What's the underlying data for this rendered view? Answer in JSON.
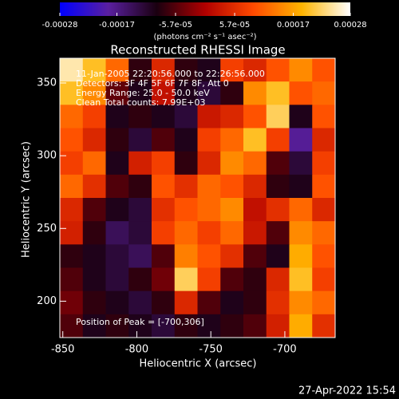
{
  "chart_data": {
    "type": "image",
    "title": "Reconstructed RHESSI Image",
    "x_label": "Heliocentric X (arcsec)",
    "y_label": "Heliocentric Y (arcsec)",
    "xlim": [
      -852,
      -666
    ],
    "ylim": [
      175,
      367
    ],
    "xticks": [
      -850,
      -800,
      -750,
      -700
    ],
    "yticks": [
      200,
      250,
      300,
      350
    ],
    "colorbar": {
      "label": "(photons cm⁻² s⁻¹ asec⁻²)",
      "lim": [
        -0.00028,
        0.00028
      ],
      "ticks": [
        -0.00028,
        -0.00017,
        {
          "value": -5.7e-05,
          "label": "-5.7e-05"
        },
        {
          "value": 5.7e-05,
          "label": "5.7e-05"
        },
        0.00017,
        0.00028
      ],
      "colormap": [
        "#0000ff",
        "#5a1fa0",
        "#1a0010",
        "#b00000",
        "#ff4a00",
        "#ffb400",
        "#ffffff"
      ]
    },
    "annotations": [
      "11-Jan-2005 22:20:56.000 to 22:26:56.000",
      "Detectors: 3F 4F 5F 6F 7F 8F, Att 0",
      "Energy Range: 25.0 - 50.0 keV",
      "Clean   Total counts: 7.99E+03"
    ],
    "peak_label": "Position of Peak = [-700,306]",
    "footer": "27-Apr-2022 15:54",
    "values": [
      [
        0.00025,
        0.0002,
        0.00012,
        -8e-05,
        5e-05,
        -8e-05,
        -0.0001,
        8e-05,
        5e-05,
        0.0001,
        0.00015,
        0.0001
      ],
      [
        0.0002,
        0.00015,
        -5e-05,
        -0.0001,
        2e-05,
        -0.0001,
        -0.00012,
        -8e-05,
        0.00015,
        0.0002,
        0.0001,
        0.00012
      ],
      [
        0.00012,
        8e-05,
        -0.0001,
        -8e-05,
        -0.0001,
        -0.00012,
        3e-05,
        5e-05,
        0.0001,
        0.00022,
        -0.0001,
        0.0001
      ],
      [
        0.0001,
        5e-05,
        -8e-05,
        -0.00012,
        -6e-05,
        -0.0001,
        8e-05,
        0.00012,
        0.0002,
        8e-05,
        -0.00018,
        5e-05
      ],
      [
        8e-05,
        0.00012,
        -0.0001,
        4e-05,
        8e-05,
        -8e-05,
        5e-05,
        0.00015,
        0.00012,
        -6e-05,
        -0.00012,
        8e-05
      ],
      [
        0.00012,
        6e-05,
        -6e-05,
        -8e-05,
        0.0001,
        6e-05,
        0.00012,
        0.0001,
        5e-05,
        -8e-05,
        -0.0001,
        0.0001
      ],
      [
        5e-05,
        -6e-05,
        -0.0001,
        -0.00012,
        6e-05,
        0.0001,
        0.00012,
        0.00015,
        2e-05,
        6e-05,
        0.00012,
        5e-05
      ],
      [
        4e-05,
        -8e-05,
        -0.00014,
        -0.00012,
        8e-05,
        0.00012,
        8e-05,
        0.00012,
        3e-05,
        -6e-05,
        0.00015,
        0.00012
      ],
      [
        -8e-05,
        -0.0001,
        -0.00012,
        -0.00014,
        -6e-05,
        0.00014,
        0.0001,
        6e-05,
        -6e-05,
        -0.0001,
        0.00018,
        0.0001
      ],
      [
        -6e-05,
        -0.0001,
        -0.00012,
        -8e-05,
        -4e-05,
        0.00022,
        8e-05,
        -6e-05,
        -8e-05,
        5e-05,
        0.0002,
        8e-05
      ],
      [
        -4e-05,
        -8e-05,
        -0.0001,
        -0.00012,
        -8e-05,
        5e-05,
        -6e-05,
        -0.0001,
        -8e-05,
        6e-05,
        0.00015,
        0.00012
      ],
      [
        -6e-05,
        -0.0001,
        -8e-05,
        -0.0001,
        -0.00012,
        -8e-05,
        -0.0001,
        -8e-05,
        -6e-05,
        4e-05,
        0.00018,
        6e-05
      ]
    ]
  }
}
